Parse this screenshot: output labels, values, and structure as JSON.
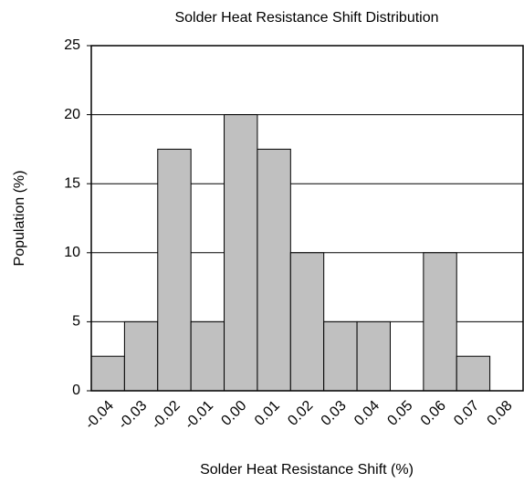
{
  "chart_data": {
    "type": "bar",
    "title": "Solder Heat Resistance Shift Distribution",
    "xlabel": "Solder Heat Resistance Shift (%)",
    "ylabel": "Population (%)",
    "categories": [
      "-0.04",
      "-0.03",
      "-0.02",
      "-0.01",
      "0.00",
      "0.01",
      "0.02",
      "0.03",
      "0.04",
      "0.05",
      "0.06",
      "0.07",
      "0.08"
    ],
    "values": [
      2.5,
      5,
      17.5,
      5,
      20,
      17.5,
      10,
      5,
      5,
      0,
      10,
      2.5,
      0
    ],
    "color": "#c0c0c0",
    "ylim": [
      0,
      25
    ],
    "yticks": [
      0,
      5,
      10,
      15,
      20,
      25
    ],
    "grid": true
  }
}
